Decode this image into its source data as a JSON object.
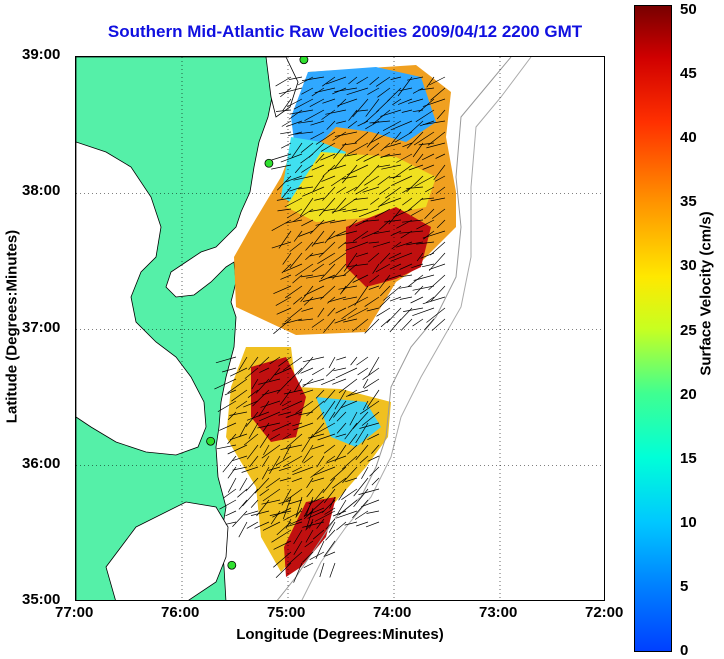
{
  "title": "Southern Mid-Atlantic Raw Velocities 2009/04/12 2200 GMT",
  "map": {
    "xlabel": "Longitude (Degrees:Minutes)",
    "ylabel": "Latitude (Degrees:Minutes)",
    "x_ticks": [
      "77:00",
      "76:00",
      "75:00",
      "74:00",
      "73:00",
      "72:00"
    ],
    "y_ticks": [
      "39:00",
      "38:00",
      "37:00",
      "36:00",
      "35:00"
    ],
    "lon_range": [
      -77,
      -72
    ],
    "lat_range": [
      35,
      39
    ],
    "land_color": "#55f0a8",
    "grid": "dotted"
  },
  "colorbar": {
    "title": "Surface Velocity (cm/s)",
    "range": [
      0,
      50
    ],
    "ticks": [
      "50",
      "45",
      "40",
      "35",
      "30",
      "25",
      "20",
      "15",
      "10",
      "5",
      "0"
    ],
    "colormap": "jet"
  },
  "stations": [
    {
      "lon": -74.85,
      "lat": 38.98
    },
    {
      "lon": -75.18,
      "lat": 38.22
    },
    {
      "lon": -75.73,
      "lat": 36.18
    },
    {
      "lon": -75.53,
      "lat": 35.27
    }
  ]
}
